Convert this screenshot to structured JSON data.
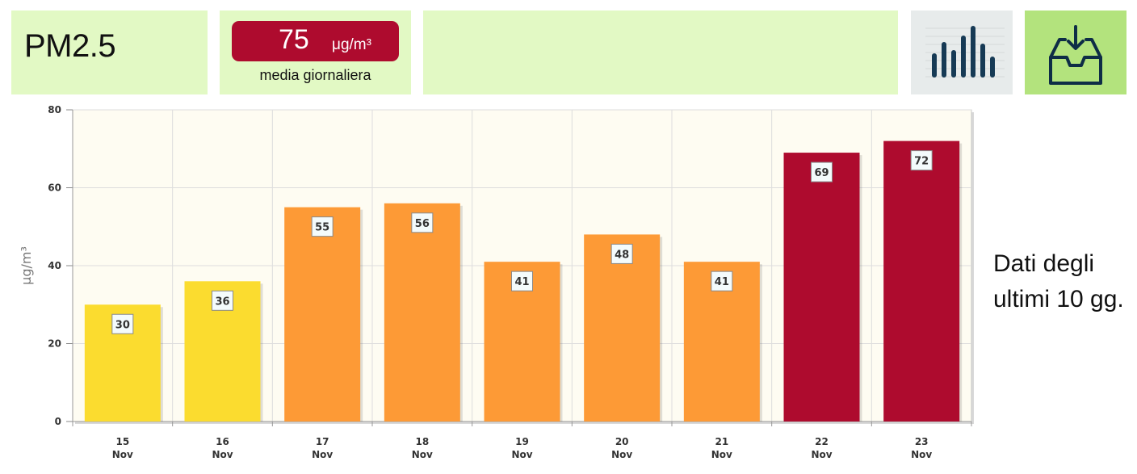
{
  "header": {
    "pollutant": "PM2.5",
    "value": "75",
    "unit": "μg/m³",
    "caption": "media giornaliera",
    "chart_button_icon": "bar-chart-icon",
    "download_button_icon": "download-tray-icon"
  },
  "side_note": "Dati degli ultimi 10 gg.",
  "colors": {
    "panel_bg": "#e2f9c4",
    "badge": "#ae0b2e",
    "low": "#fbdc2f",
    "medium": "#fd9a36",
    "high": "#ae0b2e",
    "plot_bg": "#fefcf2"
  },
  "chart_data": {
    "type": "bar",
    "categories": [
      "15 Nov",
      "16 Nov",
      "17 Nov",
      "18 Nov",
      "19 Nov",
      "20 Nov",
      "21 Nov",
      "22 Nov",
      "23 Nov"
    ],
    "tick_labels": [
      {
        "day": "15",
        "month": "Nov"
      },
      {
        "day": "16",
        "month": "Nov"
      },
      {
        "day": "17",
        "month": "Nov"
      },
      {
        "day": "18",
        "month": "Nov"
      },
      {
        "day": "19",
        "month": "Nov"
      },
      {
        "day": "20",
        "month": "Nov"
      },
      {
        "day": "21",
        "month": "Nov"
      },
      {
        "day": "22",
        "month": "Nov"
      },
      {
        "day": "23",
        "month": "Nov"
      }
    ],
    "values": [
      30,
      36,
      55,
      56,
      41,
      48,
      41,
      69,
      72
    ],
    "bar_colors": [
      "#fbdc2f",
      "#fbdc2f",
      "#fd9a36",
      "#fd9a36",
      "#fd9a36",
      "#fd9a36",
      "#fd9a36",
      "#ae0b2e",
      "#ae0b2e"
    ],
    "ylabel": "μg/m³",
    "ylim": [
      0,
      80
    ],
    "yticks": [
      0,
      20,
      40,
      60,
      80
    ],
    "grid": true,
    "data_labels": true
  }
}
